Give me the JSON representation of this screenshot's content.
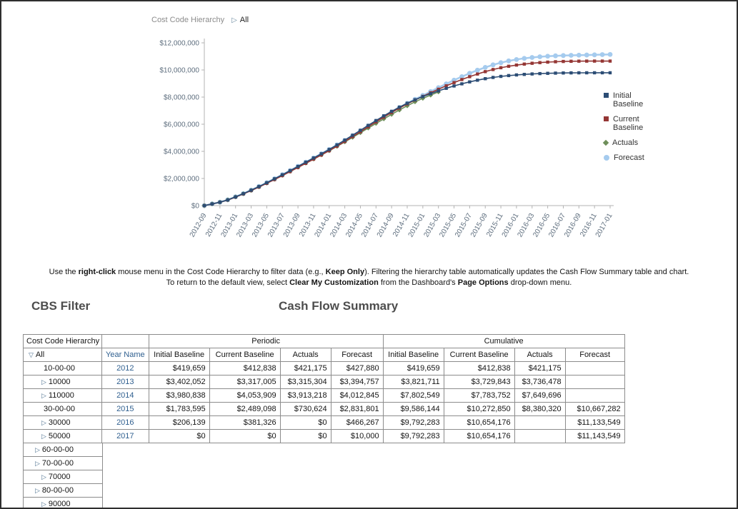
{
  "breadcrumb": {
    "label": "Cost Code Hierarchy",
    "arrow": "▷",
    "value": "All"
  },
  "chart_data": {
    "type": "line",
    "title": "",
    "xlabel": "",
    "ylabel": "",
    "ylim": [
      0,
      12000000
    ],
    "y_tick_step": 2000000,
    "grid": false,
    "legend_position": "right",
    "tick_every": 2,
    "months": [
      "2012-09",
      "2012-10",
      "2012-11",
      "2012-12",
      "2013-01",
      "2013-02",
      "2013-03",
      "2013-04",
      "2013-05",
      "2013-06",
      "2013-07",
      "2013-08",
      "2013-09",
      "2013-10",
      "2013-11",
      "2013-12",
      "2014-01",
      "2014-02",
      "2014-03",
      "2014-04",
      "2014-05",
      "2014-06",
      "2014-07",
      "2014-08",
      "2014-09",
      "2014-10",
      "2014-11",
      "2014-12",
      "2015-01",
      "2015-02",
      "2015-03",
      "2015-04",
      "2015-05",
      "2015-06",
      "2015-07",
      "2015-08",
      "2015-09",
      "2015-10",
      "2015-11",
      "2015-12",
      "2016-01",
      "2016-02",
      "2016-03",
      "2016-04",
      "2016-05",
      "2016-06",
      "2016-07",
      "2016-08",
      "2016-09",
      "2016-10",
      "2016-11",
      "2016-12",
      "2017-01"
    ],
    "series": [
      {
        "name": "Initial Baseline",
        "color": "#2c4d75",
        "marker": "square",
        "knots": [
          [
            0,
            0
          ],
          [
            3,
            419659
          ],
          [
            15,
            3821711
          ],
          [
            27,
            7802549
          ],
          [
            39,
            9586144
          ],
          [
            51,
            9792283
          ],
          [
            52,
            9792283
          ]
        ]
      },
      {
        "name": "Current Baseline",
        "color": "#943634",
        "marker": "square",
        "knots": [
          [
            0,
            0
          ],
          [
            3,
            412838
          ],
          [
            15,
            3729843
          ],
          [
            27,
            7783752
          ],
          [
            39,
            10272850
          ],
          [
            51,
            10654176
          ],
          [
            52,
            10654176
          ]
        ]
      },
      {
        "name": "Actuals",
        "color": "#6e8f5a",
        "marker": "diamond",
        "knots": [
          [
            0,
            0
          ],
          [
            3,
            421175
          ],
          [
            15,
            3736478
          ],
          [
            27,
            7649696
          ],
          [
            30,
            8380320
          ]
        ]
      },
      {
        "name": "Forecast",
        "color": "#a5cbee",
        "marker": "circle",
        "knots": [
          [
            0,
            0
          ],
          [
            3,
            427880
          ],
          [
            15,
            3822637
          ],
          [
            27,
            7835482
          ],
          [
            39,
            10667282
          ],
          [
            51,
            11133549
          ],
          [
            52,
            11143549
          ]
        ]
      }
    ]
  },
  "instructions": {
    "line1": [
      {
        "t": "Use the "
      },
      {
        "t": "right-click",
        "b": true
      },
      {
        "t": " mouse menu in the Cost Code Hierarchy to filter data (e.g., "
      },
      {
        "t": "Keep Only",
        "b": true
      },
      {
        "t": "). Filtering the hierarchy table automatically updates the Cash Flow Summary table and chart."
      }
    ],
    "line2": [
      {
        "t": "To return to the default view, select "
      },
      {
        "t": "Clear My Customization",
        "b": true
      },
      {
        "t": " from the Dashboard's "
      },
      {
        "t": "Page Options",
        "b": true
      },
      {
        "t": " drop-down menu."
      }
    ]
  },
  "cbs_filter": {
    "heading": "CBS Filter",
    "table_header": "Cost Code Hierarchy",
    "rows": [
      {
        "icon": "▽",
        "label": "All",
        "indent": 0
      },
      {
        "icon": "",
        "label": "10-00-00",
        "indent": 1
      },
      {
        "icon": "▷",
        "label": "10000",
        "indent": 2
      },
      {
        "icon": "▷",
        "label": "110000",
        "indent": 2
      },
      {
        "icon": "",
        "label": "30-00-00",
        "indent": 1
      },
      {
        "icon": "▷",
        "label": "30000",
        "indent": 2
      },
      {
        "icon": "▷",
        "label": "50000",
        "indent": 2
      },
      {
        "icon": "▷",
        "label": "60-00-00",
        "indent": 1
      },
      {
        "icon": "▷",
        "label": "70-00-00",
        "indent": 1
      },
      {
        "icon": "▷",
        "label": "70000",
        "indent": 2
      },
      {
        "icon": "▷",
        "label": "80-00-00",
        "indent": 1
      },
      {
        "icon": "▷",
        "label": "90000",
        "indent": 2
      }
    ]
  },
  "summary": {
    "heading": "Cash Flow Summary",
    "groups": [
      "Periodic",
      "Cumulative"
    ],
    "year_column": "Year Name",
    "value_columns": [
      "Initial Baseline",
      "Current Baseline",
      "Actuals",
      "Forecast"
    ],
    "rows": [
      {
        "year": "2012",
        "periodic": [
          "$419,659",
          "$412,838",
          "$421,175",
          "$427,880"
        ],
        "cumulative": [
          "$419,659",
          "$412,838",
          "$421,175",
          ""
        ]
      },
      {
        "year": "2013",
        "periodic": [
          "$3,402,052",
          "$3,317,005",
          "$3,315,304",
          "$3,394,757"
        ],
        "cumulative": [
          "$3,821,711",
          "$3,729,843",
          "$3,736,478",
          ""
        ]
      },
      {
        "year": "2014",
        "periodic": [
          "$3,980,838",
          "$4,053,909",
          "$3,913,218",
          "$4,012,845"
        ],
        "cumulative": [
          "$7,802,549",
          "$7,783,752",
          "$7,649,696",
          ""
        ]
      },
      {
        "year": "2015",
        "periodic": [
          "$1,783,595",
          "$2,489,098",
          "$730,624",
          "$2,831,801"
        ],
        "cumulative": [
          "$9,586,144",
          "$10,272,850",
          "$8,380,320",
          "$10,667,282"
        ]
      },
      {
        "year": "2016",
        "periodic": [
          "$206,139",
          "$381,326",
          "$0",
          "$466,267"
        ],
        "cumulative": [
          "$9,792,283",
          "$10,654,176",
          "",
          "$11,133,549"
        ]
      },
      {
        "year": "2017",
        "periodic": [
          "$0",
          "$0",
          "$0",
          "$10,000"
        ],
        "cumulative": [
          "$9,792,283",
          "$10,654,176",
          "",
          "$11,143,549"
        ]
      }
    ]
  }
}
